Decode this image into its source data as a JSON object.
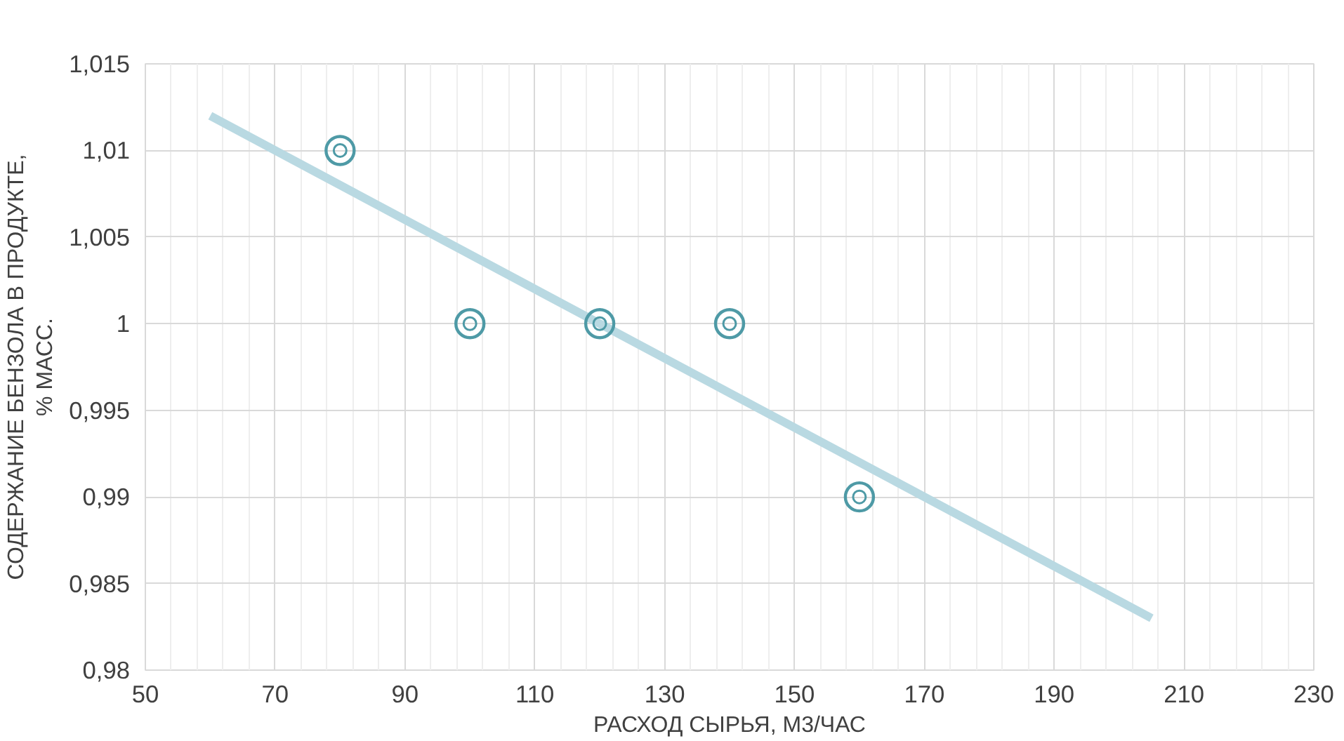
{
  "chart_data": {
    "type": "scatter",
    "xlabel": "РАСХОД СЫРЬЯ, М3/ЧАС",
    "ylabel": "СОДЕРЖАНИЕ БЕНЗОЛА В ПРОДУКТЕ, % МАСС.",
    "x": [
      80,
      100,
      120,
      140,
      160
    ],
    "series": [
      {
        "type": "scatter",
        "color": "#4e9aa6",
        "values": [
          1.01,
          1.0,
          1.0,
          1.0,
          0.99
        ],
        "marker": "circle"
      },
      {
        "type": "line",
        "color": "#b9d9e2",
        "x": [
          60,
          205
        ],
        "values": [
          1.012,
          0.983
        ]
      }
    ],
    "xlim": [
      50,
      230
    ],
    "xticks": [
      50,
      70,
      90,
      110,
      130,
      150,
      170,
      190,
      210,
      230
    ],
    "ylim": [
      0.98,
      1.015
    ],
    "yticks": [
      {
        "value": 0.98,
        "label": "0,98"
      },
      {
        "value": 0.985,
        "label": "0,985"
      },
      {
        "value": 0.99,
        "label": "0,99"
      },
      {
        "value": 0.995,
        "label": "0,995"
      },
      {
        "value": 1.0,
        "label": "1"
      },
      {
        "value": 1.005,
        "label": "1,005"
      },
      {
        "value": 1.01,
        "label": "1,01"
      },
      {
        "value": 1.015,
        "label": "1,015"
      }
    ],
    "grid": true
  }
}
